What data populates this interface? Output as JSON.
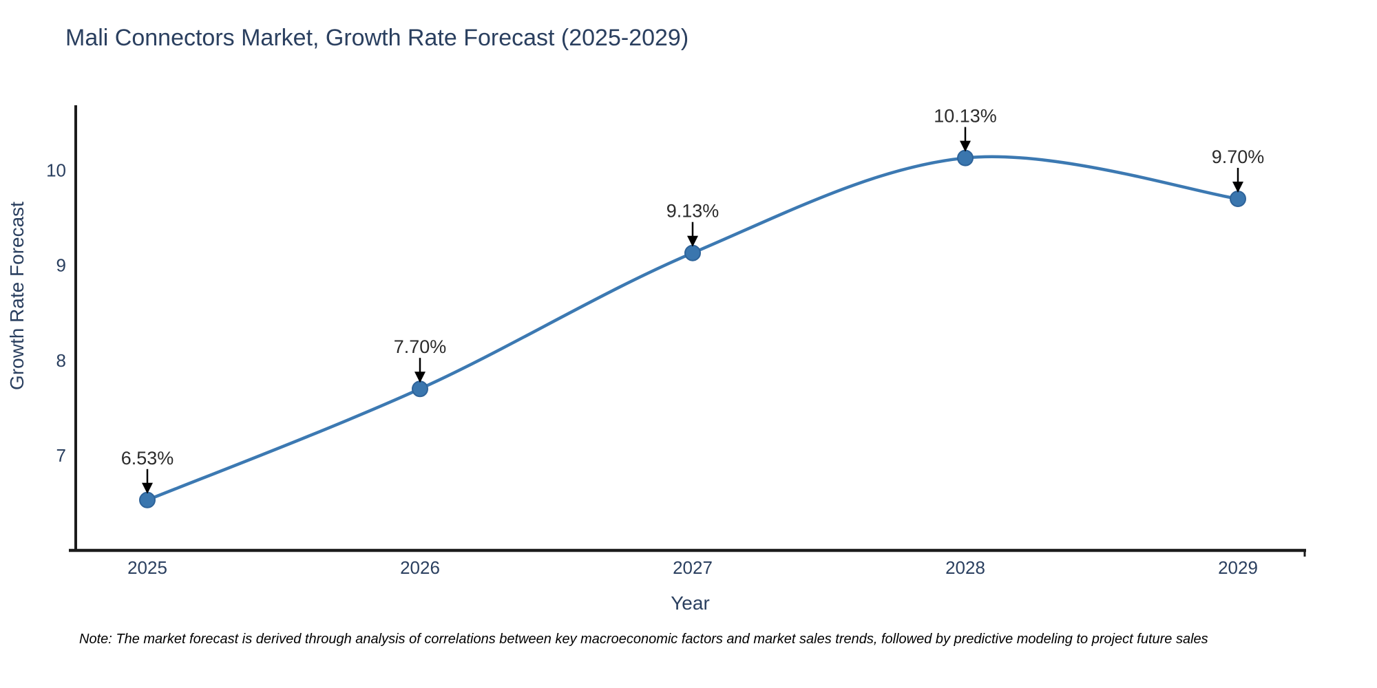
{
  "chart_data": {
    "type": "line",
    "title": "Mali Connectors Market, Growth Rate Forecast (2025-2029)",
    "xlabel": "Year",
    "ylabel": "Growth Rate Forecast",
    "categories": [
      "2025",
      "2026",
      "2027",
      "2028",
      "2029"
    ],
    "values": [
      6.53,
      7.7,
      9.13,
      10.13,
      9.7
    ],
    "point_labels": [
      "6.53%",
      "7.70%",
      "9.13%",
      "10.13%",
      "9.70%"
    ],
    "y_ticks": [
      7,
      8,
      9,
      10
    ],
    "ylim": [
      6.0,
      10.67
    ],
    "line_shape": "spline",
    "grid": false,
    "legend_position": "none",
    "colors": {
      "line": "#3c79b2",
      "marker_fill": "#3a76ae",
      "marker_edge": "#2e6399",
      "axis_line": "#1c1c1c",
      "title_text": "#2a3f5f",
      "tick_text": "#2a3f5f",
      "axis_title_text": "#2a3f5f",
      "annotation_text": "#2b2b2b",
      "arrow": "#000000"
    }
  },
  "note": "Note: The market forecast is derived through analysis of correlations between key macroeconomic factors and market sales trends, followed by predictive modeling to project future sales"
}
